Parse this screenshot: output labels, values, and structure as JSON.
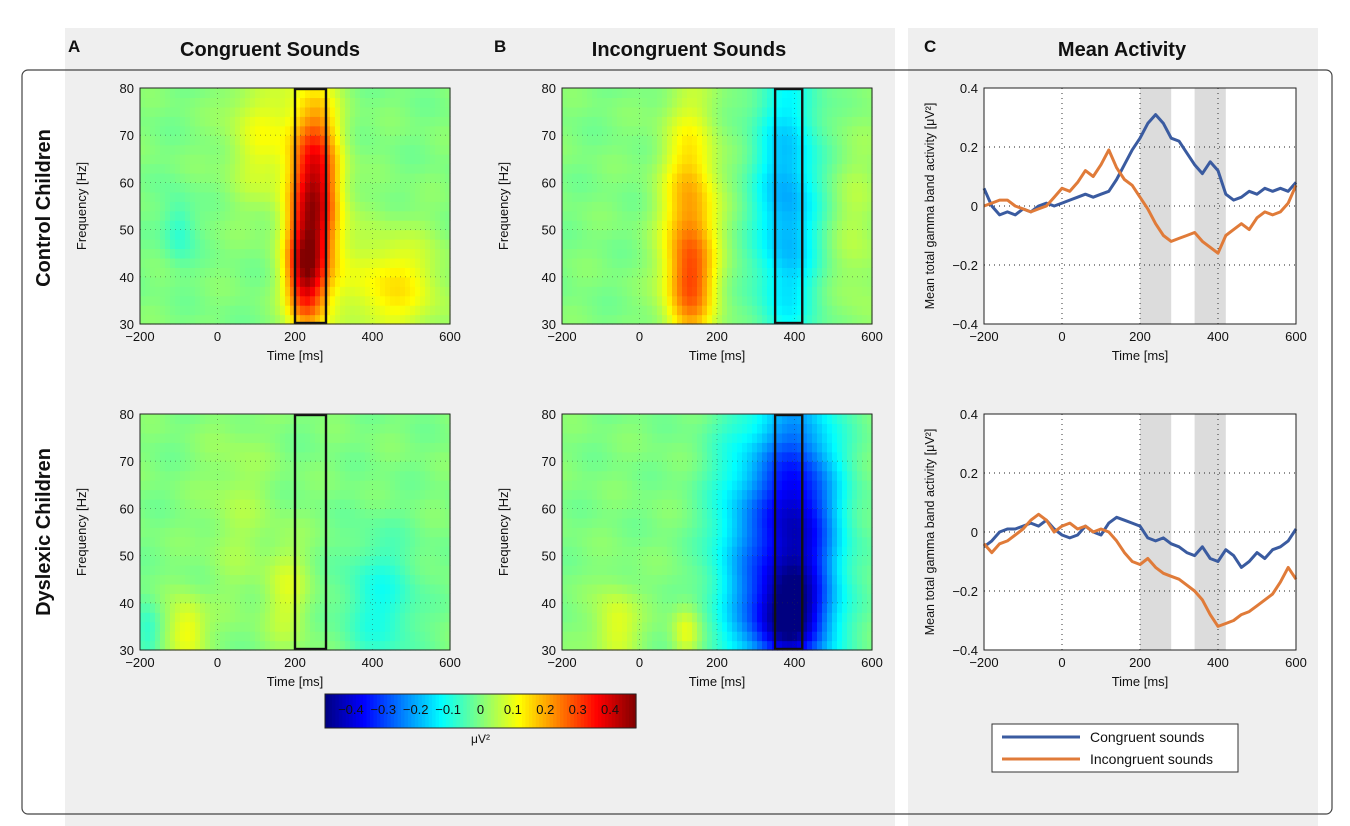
{
  "panels": {
    "A": {
      "letter": "A",
      "title": "Congruent Sounds"
    },
    "B": {
      "letter": "B",
      "title": "Incongruent Sounds"
    },
    "C": {
      "letter": "C",
      "title": "Mean Activity"
    }
  },
  "rows": {
    "control": "Control Children",
    "dyslexic": "Dyslexic Children"
  },
  "colors": {
    "congruent": "#3a5ba0",
    "incongruent": "#e07b39",
    "panel_bg": "#efefef",
    "shade": "#dcdcdc"
  },
  "colorbar": {
    "ticks": [
      "−0.4",
      "−0.3",
      "−0.2",
      "−0.1",
      "0",
      "0.1",
      "0.2",
      "0.3",
      "0.4"
    ],
    "tick_values": [
      -0.4,
      -0.3,
      -0.2,
      -0.1,
      0,
      0.1,
      0.2,
      0.3,
      0.4
    ],
    "range": [
      -0.48,
      0.48
    ],
    "label": "μV²"
  },
  "chart_data": [
    {
      "id": "A-control",
      "type": "heatmap",
      "xlabel": "Time [ms]",
      "ylabel": "Frequency [Hz]",
      "xlim": [
        -200,
        600
      ],
      "ylim": [
        30,
        80
      ],
      "xticks": [
        -200,
        0,
        200,
        400,
        600
      ],
      "yticks": [
        30,
        40,
        50,
        60,
        70,
        80
      ],
      "window": [
        200,
        280
      ],
      "blobs": [
        {
          "t": 250,
          "f": 58,
          "st": 45,
          "sf": 14,
          "a": 0.42
        },
        {
          "t": 225,
          "f": 40,
          "st": 35,
          "sf": 8,
          "a": 0.3
        },
        {
          "t": 110,
          "f": 70,
          "st": 60,
          "sf": 10,
          "a": 0.1
        },
        {
          "t": 450,
          "f": 38,
          "st": 90,
          "sf": 8,
          "a": 0.14
        },
        {
          "t": -100,
          "f": 50,
          "st": 30,
          "sf": 5,
          "a": -0.08
        }
      ]
    },
    {
      "id": "B-control",
      "type": "heatmap",
      "xlabel": "Time [ms]",
      "ylabel": "Frequency [Hz]",
      "xlim": [
        -200,
        600
      ],
      "ylim": [
        30,
        80
      ],
      "xticks": [
        -200,
        0,
        200,
        400,
        600
      ],
      "yticks": [
        30,
        40,
        50,
        60,
        70,
        80
      ],
      "window": [
        350,
        420
      ],
      "blobs": [
        {
          "t": 130,
          "f": 50,
          "st": 50,
          "sf": 18,
          "a": 0.22
        },
        {
          "t": 130,
          "f": 38,
          "st": 40,
          "sf": 7,
          "a": 0.12
        },
        {
          "t": 380,
          "f": 55,
          "st": 60,
          "sf": 22,
          "a": -0.2
        },
        {
          "t": 560,
          "f": 50,
          "st": 50,
          "sf": 15,
          "a": 0.05
        }
      ]
    },
    {
      "id": "C-control",
      "type": "line",
      "xlabel": "Time [ms]",
      "ylabel": "Mean total gamma band activity [μV²]",
      "xlim": [
        -200,
        600
      ],
      "ylim": [
        -0.4,
        0.4
      ],
      "xticks": [
        -200,
        0,
        200,
        400,
        600
      ],
      "yticks": [
        -0.4,
        -0.2,
        0,
        0.2,
        0.4
      ],
      "shaded": [
        [
          200,
          280
        ],
        [
          340,
          420
        ]
      ],
      "series": [
        {
          "name": "Congruent sounds",
          "color": "#3a5ba0",
          "x": [
            -200,
            -180,
            -160,
            -140,
            -120,
            -100,
            -80,
            -60,
            -40,
            -20,
            0,
            20,
            40,
            60,
            80,
            100,
            120,
            140,
            160,
            180,
            200,
            220,
            240,
            260,
            280,
            300,
            320,
            340,
            360,
            380,
            400,
            420,
            440,
            460,
            480,
            500,
            520,
            540,
            560,
            580,
            600
          ],
          "y": [
            0.06,
            0.0,
            -0.03,
            -0.02,
            -0.03,
            -0.01,
            -0.02,
            0.0,
            0.01,
            0.0,
            0.01,
            0.02,
            0.03,
            0.04,
            0.03,
            0.04,
            0.05,
            0.09,
            0.14,
            0.19,
            0.23,
            0.28,
            0.31,
            0.28,
            0.23,
            0.22,
            0.18,
            0.14,
            0.11,
            0.15,
            0.12,
            0.04,
            0.02,
            0.03,
            0.05,
            0.04,
            0.06,
            0.05,
            0.06,
            0.05,
            0.08
          ]
        },
        {
          "name": "Incongruent sounds",
          "color": "#e07b39",
          "x": [
            -200,
            -180,
            -160,
            -140,
            -120,
            -100,
            -80,
            -60,
            -40,
            -20,
            0,
            20,
            40,
            60,
            80,
            100,
            120,
            140,
            160,
            180,
            200,
            220,
            240,
            260,
            280,
            300,
            320,
            340,
            360,
            380,
            400,
            420,
            440,
            460,
            480,
            500,
            520,
            540,
            560,
            580,
            600
          ],
          "y": [
            0.0,
            0.01,
            0.02,
            0.02,
            0.0,
            -0.01,
            -0.02,
            -0.01,
            0.0,
            0.03,
            0.06,
            0.05,
            0.08,
            0.12,
            0.1,
            0.14,
            0.19,
            0.13,
            0.09,
            0.07,
            0.03,
            -0.01,
            -0.06,
            -0.1,
            -0.12,
            -0.11,
            -0.1,
            -0.09,
            -0.12,
            -0.14,
            -0.16,
            -0.1,
            -0.08,
            -0.06,
            -0.08,
            -0.04,
            -0.02,
            -0.03,
            -0.02,
            0.01,
            0.07
          ]
        }
      ]
    },
    {
      "id": "A-dyslexic",
      "type": "heatmap",
      "xlabel": "Time [ms]",
      "ylabel": "Frequency [Hz]",
      "xlim": [
        -200,
        600
      ],
      "ylim": [
        30,
        80
      ],
      "xticks": [
        -200,
        0,
        200,
        400,
        600
      ],
      "yticks": [
        30,
        40,
        50,
        60,
        70,
        80
      ],
      "window": [
        200,
        280
      ],
      "blobs": [
        {
          "t": -80,
          "f": 34,
          "st": 35,
          "sf": 5,
          "a": 0.12
        },
        {
          "t": 180,
          "f": 42,
          "st": 40,
          "sf": 8,
          "a": 0.08
        },
        {
          "t": 420,
          "f": 40,
          "st": 70,
          "sf": 10,
          "a": -0.1
        },
        {
          "t": -180,
          "f": 33,
          "st": 25,
          "sf": 5,
          "a": -0.08
        },
        {
          "t": 50,
          "f": 60,
          "st": 60,
          "sf": 14,
          "a": 0.04
        }
      ]
    },
    {
      "id": "B-dyslexic",
      "type": "heatmap",
      "xlabel": "Time [ms]",
      "ylabel": "Frequency [Hz]",
      "xlim": [
        -200,
        600
      ],
      "ylim": [
        30,
        80
      ],
      "xticks": [
        -200,
        0,
        200,
        400,
        600
      ],
      "yticks": [
        30,
        40,
        50,
        60,
        70,
        80
      ],
      "window": [
        350,
        420
      ],
      "blobs": [
        {
          "t": 400,
          "f": 55,
          "st": 80,
          "sf": 20,
          "a": -0.42
        },
        {
          "t": 380,
          "f": 36,
          "st": 70,
          "sf": 7,
          "a": -0.25
        },
        {
          "t": 250,
          "f": 50,
          "st": 60,
          "sf": 20,
          "a": -0.12
        },
        {
          "t": -60,
          "f": 35,
          "st": 40,
          "sf": 6,
          "a": 0.1
        },
        {
          "t": 120,
          "f": 34,
          "st": 25,
          "sf": 4,
          "a": 0.1
        }
      ]
    },
    {
      "id": "C-dyslexic",
      "type": "line",
      "xlabel": "Time [ms]",
      "ylabel": "Mean total gamma band activity [μV²]",
      "xlim": [
        -200,
        600
      ],
      "ylim": [
        -0.4,
        0.4
      ],
      "xticks": [
        -200,
        0,
        200,
        400,
        600
      ],
      "yticks": [
        -0.4,
        -0.2,
        0,
        0.2,
        0.4
      ],
      "shaded": [
        [
          200,
          280
        ],
        [
          340,
          420
        ]
      ],
      "series": [
        {
          "name": "Congruent sounds",
          "color": "#3a5ba0",
          "x": [
            -200,
            -180,
            -160,
            -140,
            -120,
            -100,
            -80,
            -60,
            -40,
            -20,
            0,
            20,
            40,
            60,
            80,
            100,
            120,
            140,
            160,
            180,
            200,
            220,
            240,
            260,
            280,
            300,
            320,
            340,
            360,
            380,
            400,
            420,
            440,
            460,
            480,
            500,
            520,
            540,
            560,
            580,
            600
          ],
          "y": [
            -0.05,
            -0.03,
            0.0,
            0.01,
            0.01,
            0.02,
            0.03,
            0.02,
            0.04,
            0.01,
            -0.01,
            -0.02,
            -0.01,
            0.02,
            0.0,
            -0.01,
            0.03,
            0.05,
            0.04,
            0.03,
            0.02,
            -0.02,
            -0.03,
            -0.02,
            -0.04,
            -0.05,
            -0.07,
            -0.08,
            -0.05,
            -0.09,
            -0.1,
            -0.06,
            -0.08,
            -0.12,
            -0.1,
            -0.07,
            -0.09,
            -0.06,
            -0.05,
            -0.03,
            0.01
          ]
        },
        {
          "name": "Incongruent sounds",
          "color": "#e07b39",
          "x": [
            -200,
            -180,
            -160,
            -140,
            -120,
            -100,
            -80,
            -60,
            -40,
            -20,
            0,
            20,
            40,
            60,
            80,
            100,
            120,
            140,
            160,
            180,
            200,
            220,
            240,
            260,
            280,
            300,
            320,
            340,
            360,
            380,
            400,
            420,
            440,
            460,
            480,
            500,
            520,
            540,
            560,
            580,
            600
          ],
          "y": [
            -0.04,
            -0.07,
            -0.04,
            -0.03,
            -0.01,
            0.01,
            0.04,
            0.06,
            0.04,
            0.0,
            0.02,
            0.03,
            0.01,
            0.02,
            0.0,
            0.01,
            0.0,
            -0.03,
            -0.07,
            -0.1,
            -0.11,
            -0.09,
            -0.12,
            -0.14,
            -0.15,
            -0.16,
            -0.18,
            -0.2,
            -0.23,
            -0.28,
            -0.32,
            -0.31,
            -0.3,
            -0.28,
            -0.27,
            -0.25,
            -0.23,
            -0.21,
            -0.17,
            -0.12,
            -0.16
          ]
        }
      ]
    }
  ],
  "legend": {
    "entries": [
      "Congruent sounds",
      "Incongruent sounds"
    ],
    "placement": "bottom-right"
  }
}
